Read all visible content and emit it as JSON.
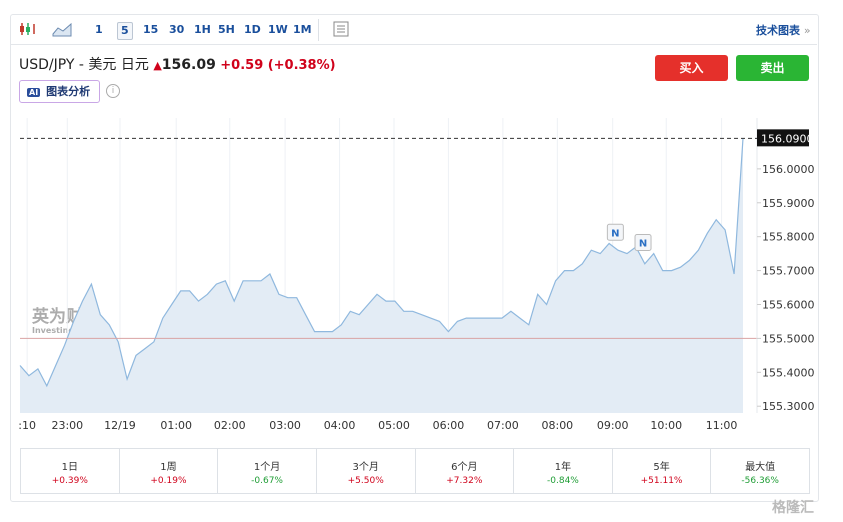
{
  "toolbar": {
    "intervals": [
      "1",
      "5",
      "15",
      "30",
      "1H",
      "5H",
      "1D",
      "1W",
      "1M"
    ],
    "selected": "5",
    "tech_chart": "技术图表",
    "more": "»"
  },
  "header": {
    "pair": "USD/JPY - 美元 日元",
    "price": "156.09",
    "change": "+0.59",
    "change_pct": "(+0.38%)",
    "buy": "买入",
    "sell": "卖出",
    "ai_badge": "AI",
    "ai_label": "图表分析",
    "info": "i"
  },
  "watermark": {
    "brand": "英为财情",
    "site": "Investing.com",
    "corner": "格隆汇"
  },
  "chart_data": {
    "type": "area",
    "color": "#8fb8de",
    "fill": "#e3ecf5",
    "grid": "x",
    "values": [
      155.42,
      155.39,
      155.41,
      155.36,
      155.42,
      155.48,
      155.55,
      155.61,
      155.66,
      155.57,
      155.54,
      155.49,
      155.38,
      155.45,
      155.47,
      155.49,
      155.56,
      155.6,
      155.64,
      155.64,
      155.61,
      155.63,
      155.66,
      155.67,
      155.61,
      155.67,
      155.67,
      155.67,
      155.69,
      155.63,
      155.62,
      155.62,
      155.57,
      155.52,
      155.52,
      155.52,
      155.54,
      155.58,
      155.57,
      155.6,
      155.63,
      155.61,
      155.61,
      155.58,
      155.58,
      155.57,
      155.56,
      155.55,
      155.52,
      155.55,
      155.56,
      155.56,
      155.56,
      155.56,
      155.56,
      155.58,
      155.56,
      155.54,
      155.63,
      155.6,
      155.67,
      155.7,
      155.7,
      155.72,
      155.76,
      155.75,
      155.78,
      155.76,
      155.75,
      155.77,
      155.72,
      155.75,
      155.7,
      155.7,
      155.71,
      155.73,
      155.76,
      155.81,
      155.85,
      155.82,
      155.69,
      156.09
    ],
    "xlim": [
      0,
      81
    ],
    "xticks": [
      {
        "value": 0.8,
        "label": ":10"
      },
      {
        "value": 5.3,
        "label": "23:00"
      },
      {
        "value": 11.2,
        "label": "12/19"
      },
      {
        "value": 17.5,
        "label": "01:00"
      },
      {
        "value": 23.5,
        "label": "02:00"
      },
      {
        "value": 29.7,
        "label": "03:00"
      },
      {
        "value": 35.8,
        "label": "04:00"
      },
      {
        "value": 41.9,
        "label": "05:00"
      },
      {
        "value": 48,
        "label": "06:00"
      },
      {
        "value": 54.1,
        "label": "07:00"
      },
      {
        "value": 60.2,
        "label": "08:00"
      },
      {
        "value": 66.4,
        "label": "09:00"
      },
      {
        "value": 72.4,
        "label": "10:00"
      },
      {
        "value": 78.6,
        "label": "11:00"
      }
    ],
    "ylim": [
      155.28,
      156.15
    ],
    "yticks": [
      {
        "value": 155.3,
        "label": "155.3000"
      },
      {
        "value": 155.4,
        "label": "155.4000"
      },
      {
        "value": 155.5,
        "label": "155.5000"
      },
      {
        "value": 155.6,
        "label": "155.6000"
      },
      {
        "value": 155.7,
        "label": "155.7000"
      },
      {
        "value": 155.8,
        "label": "155.8000"
      },
      {
        "value": 155.9,
        "label": "155.9000"
      },
      {
        "value": 156,
        "label": "156.0000"
      }
    ],
    "last_price": {
      "value": 156.09,
      "label": "156.0900"
    },
    "reference_line": 155.5,
    "annotations": [
      {
        "x": 66.7,
        "y": 155.81,
        "label": "N"
      },
      {
        "x": 69.8,
        "y": 155.78,
        "label": "N"
      }
    ]
  },
  "performance": [
    {
      "period": "1日",
      "change": "+0.39%"
    },
    {
      "period": "1周",
      "change": "+0.19%"
    },
    {
      "period": "1个月",
      "change": "-0.67%"
    },
    {
      "period": "3个月",
      "change": "+5.50%"
    },
    {
      "period": "6个月",
      "change": "+7.32%"
    },
    {
      "period": "1年",
      "change": "-0.84%"
    },
    {
      "period": "5年",
      "change": "+51.11%"
    },
    {
      "period": "最大值",
      "change": "-56.36%"
    }
  ]
}
